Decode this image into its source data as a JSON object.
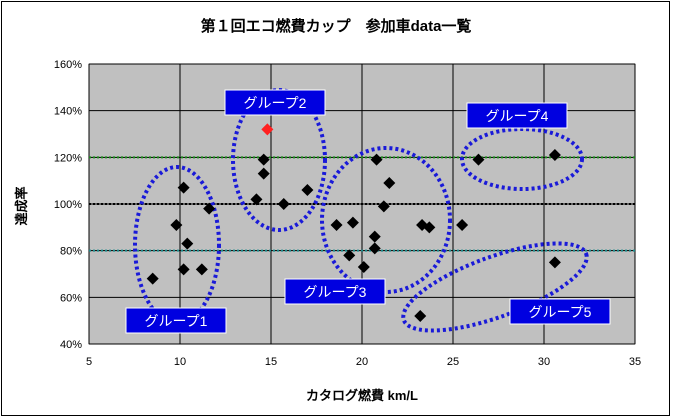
{
  "chart_data": {
    "type": "scatter",
    "title": "第１回エコ燃費カップ　参加車data一覧",
    "xlabel": "カタログ燃費 km/L",
    "ylabel": "達成率",
    "xlim": [
      5,
      35
    ],
    "ylim": [
      40,
      160
    ],
    "x_ticks": [
      "5",
      "10",
      "15",
      "20",
      "25",
      "30",
      "35"
    ],
    "y_ticks": [
      "40%",
      "60%",
      "80%",
      "100%",
      "120%",
      "140%",
      "160%"
    ],
    "grid": true,
    "reference_lines": [
      {
        "y": 120,
        "color": "#1a8a1a"
      },
      {
        "y": 100,
        "color": "#000000"
      },
      {
        "y": 80,
        "color": "#1a8a8a"
      }
    ],
    "series": [
      {
        "marker": "diamond",
        "color": "#000000",
        "points": [
          [
            8.5,
            68
          ],
          [
            9.8,
            91
          ],
          [
            10.2,
            107
          ],
          [
            10.4,
            83
          ],
          [
            10.2,
            72
          ],
          [
            11.2,
            72
          ],
          [
            11.6,
            98
          ],
          [
            14.2,
            102
          ],
          [
            14.6,
            119
          ],
          [
            14.6,
            113
          ],
          [
            15.7,
            100
          ],
          [
            17.0,
            106
          ],
          [
            18.6,
            91
          ],
          [
            19.3,
            78
          ],
          [
            19.5,
            92
          ],
          [
            20.1,
            73
          ],
          [
            20.7,
            81
          ],
          [
            20.7,
            86
          ],
          [
            20.8,
            119
          ],
          [
            21.2,
            99
          ],
          [
            21.5,
            109
          ],
          [
            23.3,
            91
          ],
          [
            23.7,
            90
          ],
          [
            25.5,
            91
          ],
          [
            23.2,
            52
          ],
          [
            26.4,
            119
          ],
          [
            30.6,
            121
          ],
          [
            30.6,
            75
          ]
        ]
      },
      {
        "marker": "diamond",
        "color": "#ff2020",
        "points": [
          [
            14.8,
            132
          ]
        ]
      }
    ],
    "annotations": [
      {
        "text": "グループ1"
      },
      {
        "text": "グループ2"
      },
      {
        "text": "グループ3"
      },
      {
        "text": "グループ4"
      },
      {
        "text": "グループ5"
      }
    ]
  }
}
